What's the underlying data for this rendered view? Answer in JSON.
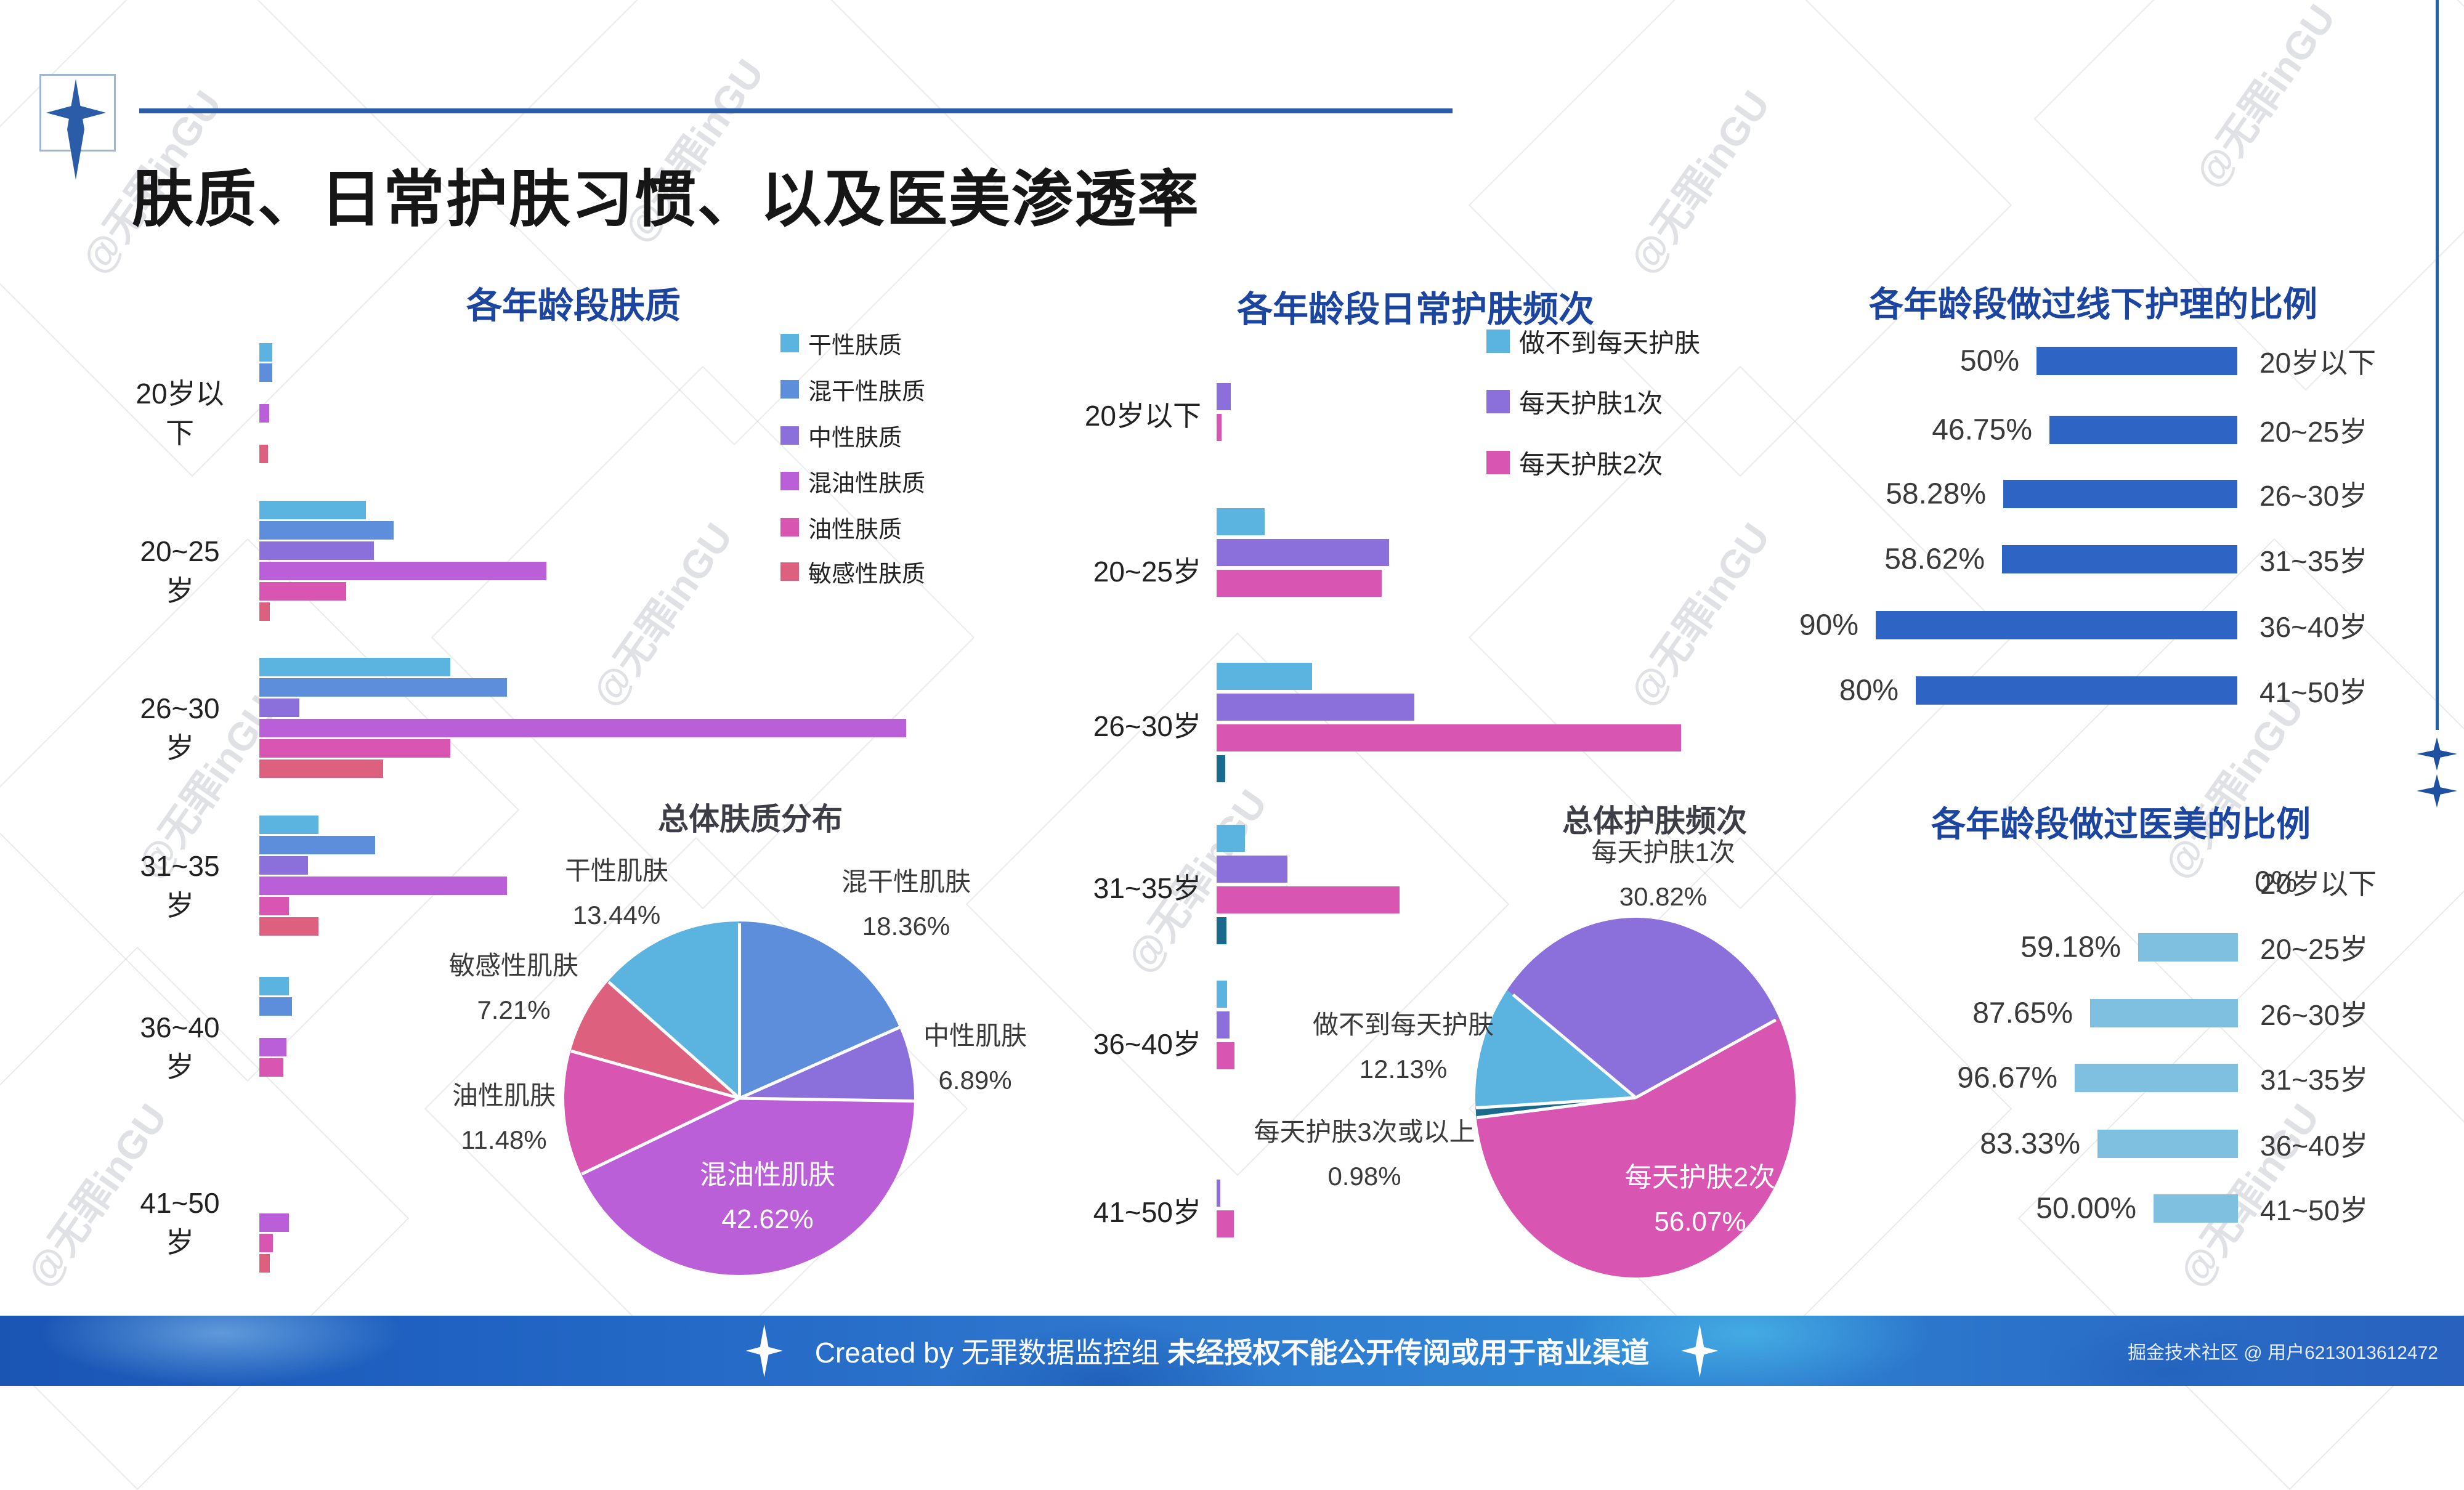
{
  "page": {
    "title": "肤质、日常护肤习惯、以及医美渗透率"
  },
  "watermark": {
    "text": "@无罪inGU"
  },
  "footer": {
    "created_by": "Created by 无罪数据监控组",
    "warning": "未经授权不能公开传阅或用于商业渠道",
    "credit": "掘金技术社区 @ 用户6213013612472"
  },
  "colors": {
    "sky": "#5BB3DF",
    "blue": "#5C8EDC",
    "purple": "#8B70DC",
    "orchid": "#BB5FD8",
    "pink": "#D855B2",
    "rose": "#DD607E",
    "teal": "#1A6A8E",
    "royal_blue": "#2E64C4",
    "light_blue": "#7FBFDF",
    "chart_title": "#1B459E",
    "accent_line": "#2A5CA8"
  },
  "chart_data": [
    {
      "id": "skin-type-by-age",
      "type": "bar",
      "orientation": "horizontal",
      "title": "各年龄段肤质",
      "categories": [
        "20岁以下",
        "20~25岁",
        "26~30岁",
        "31~35岁",
        "36~40岁",
        "41~50岁"
      ],
      "value_note": "relative length, % of longest bar (no numeric axis shown)",
      "series": [
        {
          "name": "干性肤质",
          "color": "#5BB3DF",
          "values": [
            2.0,
            16.5,
            29.5,
            9.1,
            4.6,
            0
          ]
        },
        {
          "name": "混干性肤质",
          "color": "#5C8EDC",
          "values": [
            2.0,
            20.8,
            38.3,
            17.9,
            5.0,
            0
          ]
        },
        {
          "name": "中性肤质",
          "color": "#8B70DC",
          "values": [
            0,
            17.7,
            6.2,
            7.5,
            0,
            0
          ]
        },
        {
          "name": "混油性肤质",
          "color": "#BB5FD8",
          "values": [
            1.5,
            44.4,
            100,
            38.3,
            4.2,
            4.6
          ]
        },
        {
          "name": "油性肤质",
          "color": "#D855B2",
          "values": [
            0,
            13.4,
            29.5,
            4.6,
            3.7,
            2.1
          ]
        },
        {
          "name": "敏感性肤质",
          "color": "#DD607E",
          "values": [
            1.3,
            1.6,
            19.1,
            9.1,
            0,
            1.6
          ]
        }
      ]
    },
    {
      "id": "skincare-frequency-by-age",
      "type": "bar",
      "orientation": "horizontal",
      "title": "各年龄段日常护肤频次",
      "categories": [
        "20岁以下",
        "20~25岁",
        "26~30岁",
        "31~35岁",
        "36~40岁",
        "41~50岁"
      ],
      "value_note": "relative length, % of longest bar (no numeric axis shown)",
      "series": [
        {
          "name": "做不到每天护肤",
          "color": "#5BB3DF",
          "values": [
            0,
            10.3,
            20.6,
            6.1,
            2.3,
            0
          ]
        },
        {
          "name": "每天护肤1次",
          "color": "#8B70DC",
          "values": [
            3.1,
            37.1,
            42.6,
            15.3,
            2.8,
            0.8
          ]
        },
        {
          "name": "每天护肤2次",
          "color": "#D855B2",
          "values": [
            1.1,
            35.5,
            100,
            39.4,
            3.8,
            3.7
          ]
        },
        {
          "name": "每天护肤3次或以上",
          "color": "#1A6A8E",
          "values": [
            0,
            0,
            1.9,
            2.1,
            0,
            0
          ],
          "in_legend": false
        }
      ]
    },
    {
      "id": "offline-care-ratio-by-age",
      "type": "bar",
      "orientation": "horizontal-right-aligned",
      "title": "各年龄段做过线下护理的比例",
      "categories": [
        "20岁以下",
        "20~25岁",
        "26~30岁",
        "31~35岁",
        "36~40岁",
        "41~50岁"
      ],
      "values": [
        50,
        46.75,
        58.28,
        58.62,
        90,
        80
      ],
      "labels": [
        "50%",
        "46.75%",
        "58.28%",
        "58.62%",
        "90%",
        "80%"
      ],
      "color": "#2E64C4"
    },
    {
      "id": "overall-skin-type",
      "type": "pie",
      "title": "总体肤质分布",
      "start_angle_deg": 0,
      "slices": [
        {
          "label": "混干性肌肤",
          "pct": 18.36,
          "pct_label": "18.36%",
          "color": "#5C8EDC"
        },
        {
          "label": "中性肌肤",
          "pct": 6.89,
          "pct_label": "6.89%",
          "color": "#8B70DC"
        },
        {
          "label": "混油性肌肤",
          "pct": 42.62,
          "pct_label": "42.62%",
          "color": "#BB5FD8",
          "inside": true
        },
        {
          "label": "油性肌肤",
          "pct": 11.48,
          "pct_label": "11.48%",
          "color": "#D855B2"
        },
        {
          "label": "敏感性肌肤",
          "pct": 7.21,
          "pct_label": "7.21%",
          "color": "#DD607E"
        },
        {
          "label": "干性肌肤",
          "pct": 13.44,
          "pct_label": "13.44%",
          "color": "#5BB3DF"
        }
      ]
    },
    {
      "id": "overall-skincare-frequency",
      "type": "pie",
      "title": "总体护肤频次",
      "start_angle_deg": -50,
      "slices": [
        {
          "label": "每天护肤1次",
          "pct": 30.82,
          "pct_label": "30.82%",
          "color": "#8B70DC"
        },
        {
          "label": "每天护肤2次",
          "pct": 56.07,
          "pct_label": "56.07%",
          "color": "#D855B2",
          "inside": true
        },
        {
          "label": "每天护肤3次或以上",
          "pct": 0.98,
          "pct_label": "0.98%",
          "color": "#1A6A8E"
        },
        {
          "label": "做不到每天护肤",
          "pct": 12.13,
          "pct_label": "12.13%",
          "color": "#5BB3DF"
        }
      ]
    },
    {
      "id": "medical-beauty-ratio-by-age",
      "type": "bar",
      "orientation": "horizontal-right-aligned",
      "title": "各年龄段做过医美的比例",
      "categories": [
        "20岁以下",
        "20~25岁",
        "26~30岁",
        "31~35岁",
        "36~40岁",
        "41~50岁"
      ],
      "values": [
        0,
        59.18,
        87.65,
        96.67,
        83.33,
        50.0
      ],
      "labels": [
        "0%",
        "59.18%",
        "87.65%",
        "96.67%",
        "83.33%",
        "50.00%"
      ],
      "color": "#7FBFDF"
    }
  ]
}
